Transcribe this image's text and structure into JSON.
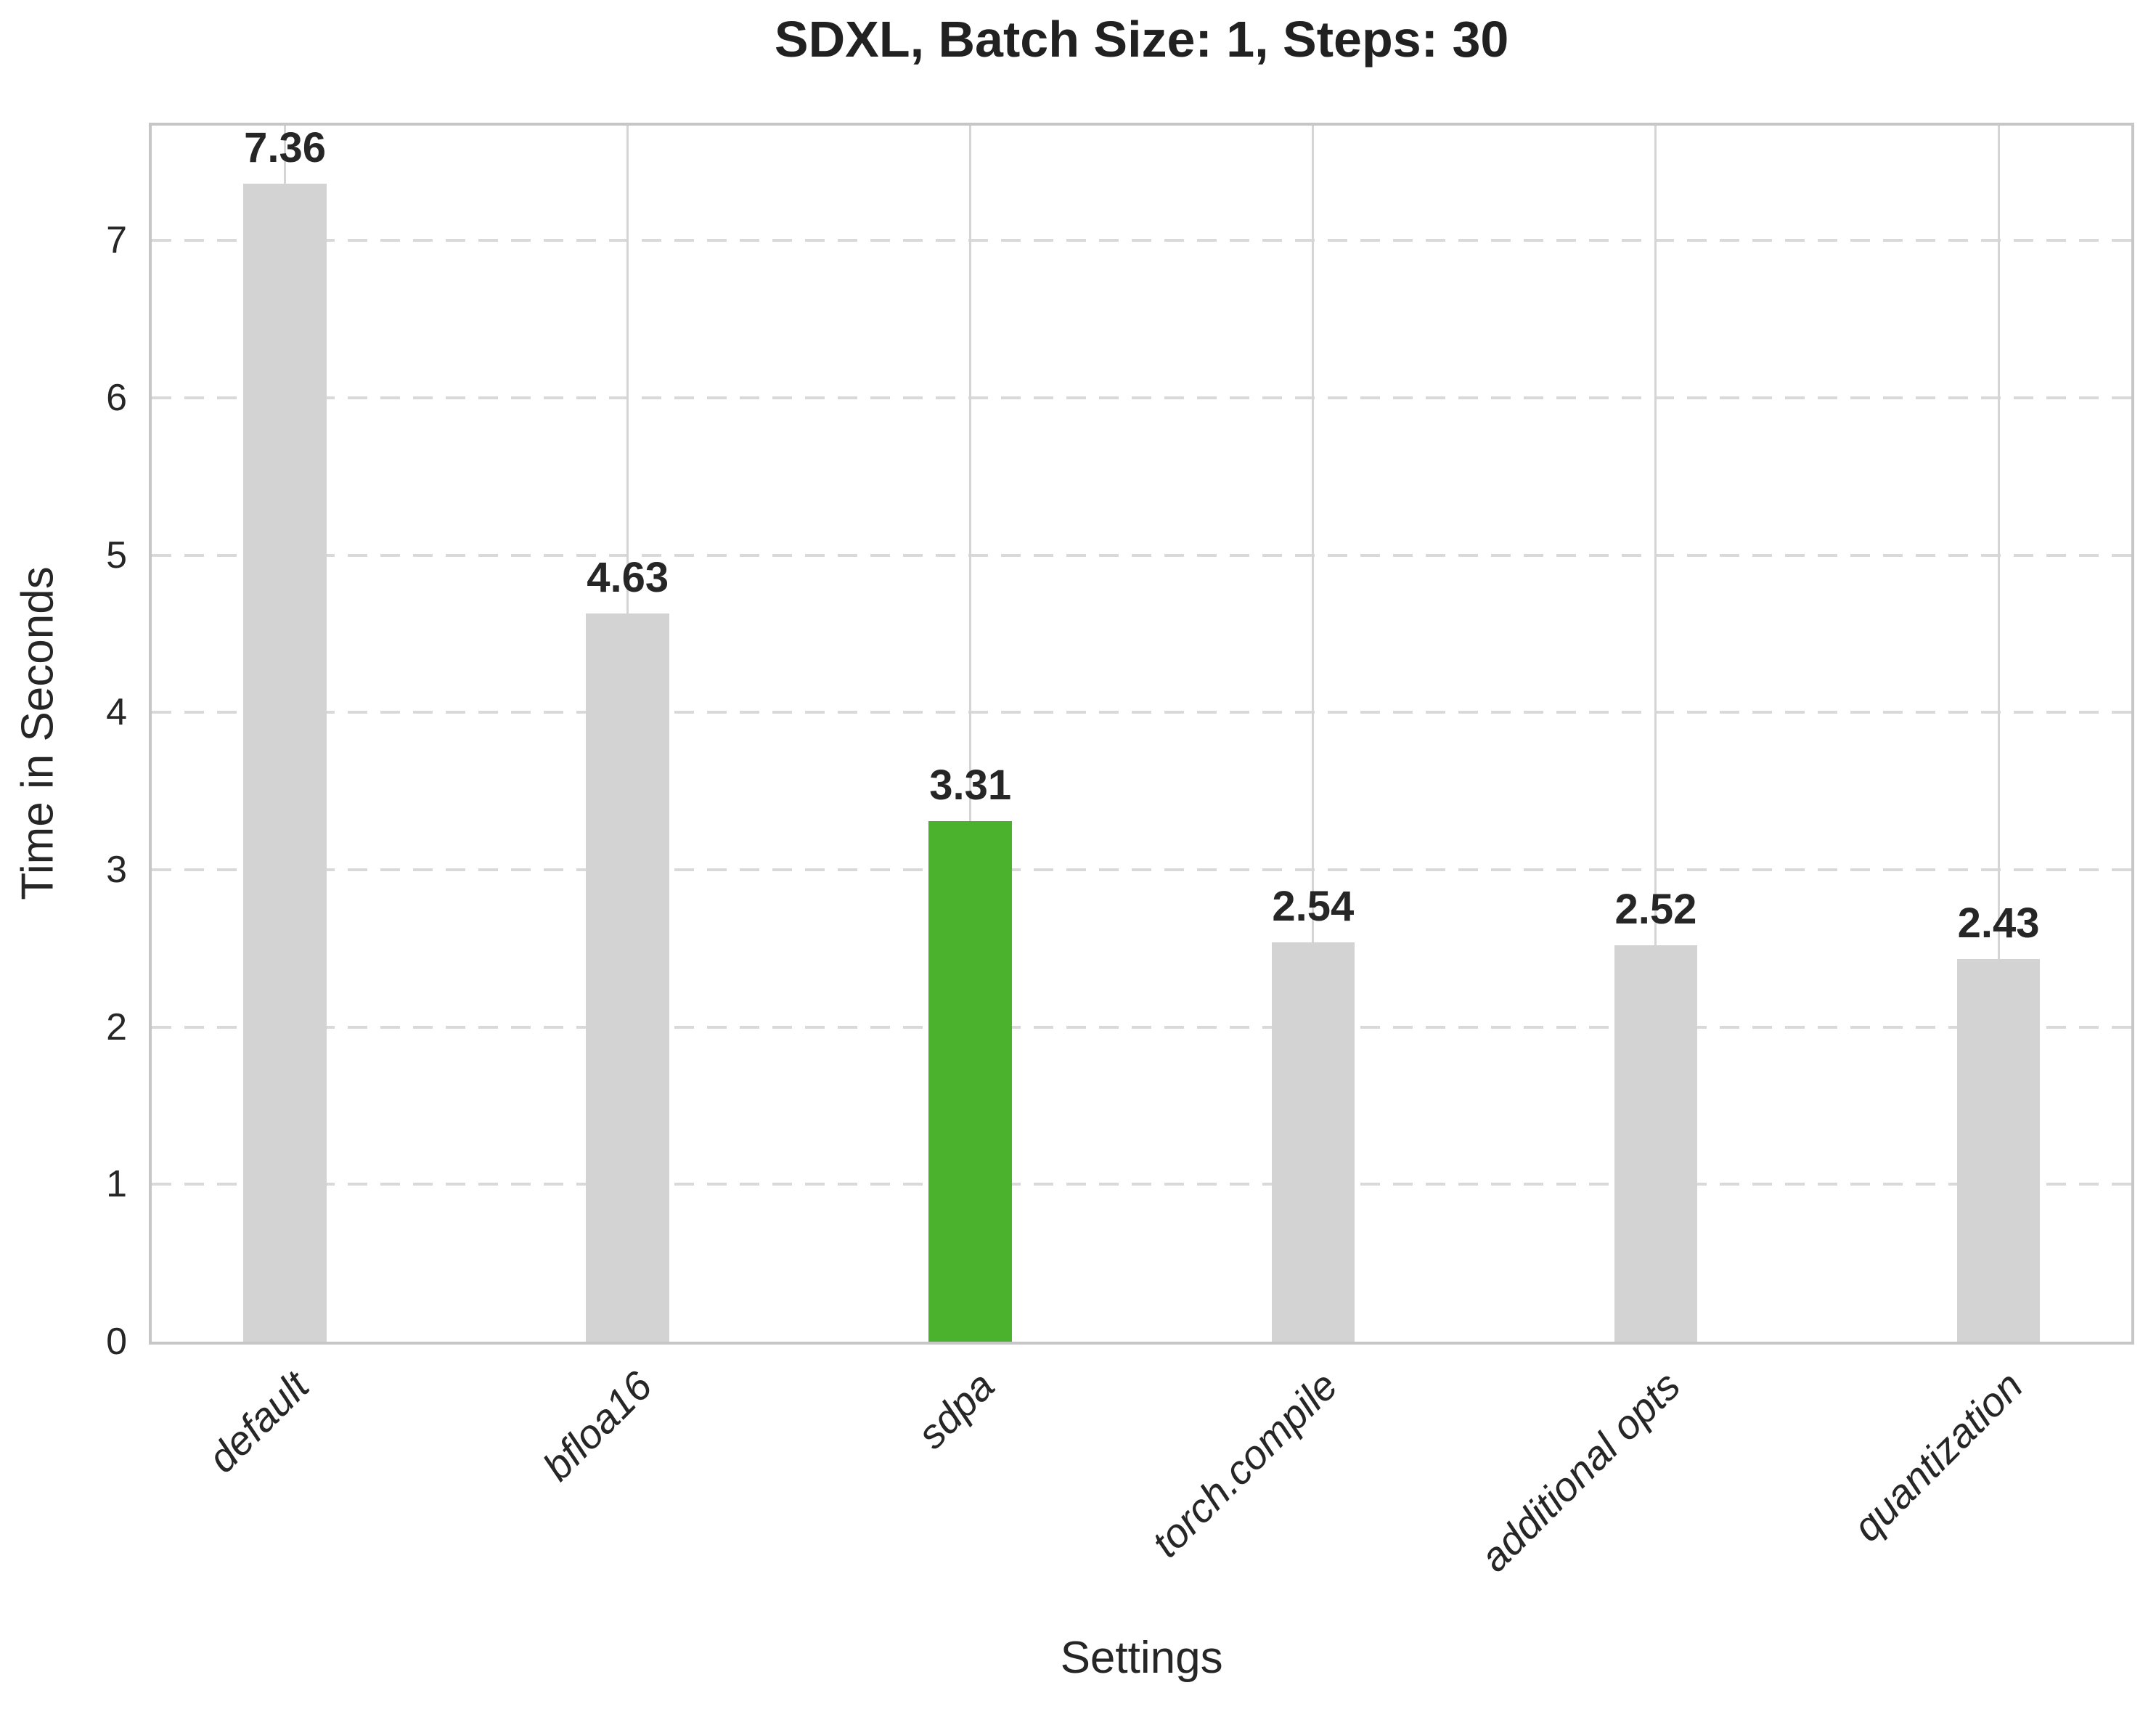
{
  "chart_data": {
    "type": "bar",
    "title": "SDXL, Batch Size: 1, Steps: 30",
    "xlabel": "Settings",
    "ylabel": "Time in Seconds",
    "categories": [
      "default",
      "bfloa16",
      "sdpa",
      "torch.compile",
      "additional opts",
      "quantization"
    ],
    "values": [
      7.36,
      4.63,
      3.31,
      2.54,
      2.52,
      2.43
    ],
    "bar_labels": [
      "7.36",
      "4.63",
      "3.31",
      "2.54",
      "2.52",
      "2.43"
    ],
    "highlight_index": 2,
    "ylim": [
      0,
      7.73
    ],
    "yticks": [
      0,
      1,
      2,
      3,
      4,
      5,
      6,
      7
    ],
    "grid": "horizontal-dashed-and-vertical-solid",
    "legend": "none",
    "colors": {
      "bar_default": "#d3d3d3",
      "bar_highlight": "#4bb22d",
      "text": "#262626",
      "grid_horizontal": "#d9d9d9",
      "grid_vertical": "#d5d5d5",
      "frame": "#c6c6c6",
      "background": "#ffffff"
    }
  }
}
